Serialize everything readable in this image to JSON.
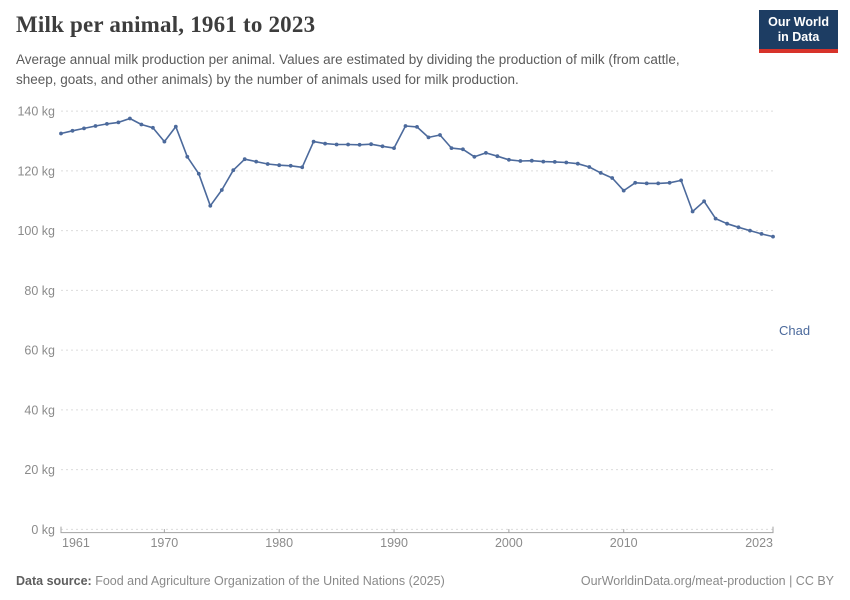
{
  "header": {
    "title": "Milk per animal, 1961 to 2023",
    "subtitle": "Average annual milk production per animal. Values are estimated by dividing the production of milk (from cattle, sheep, goats, and other animals) by the number of animals used for milk production.",
    "logo": {
      "line1": "Our World",
      "line2": "in Data"
    }
  },
  "footer": {
    "source_label": "Data source:",
    "source_text": "Food and Agriculture Organization of the United Nations (2025)",
    "link_text": "OurWorldinData.org/meat-production | CC BY"
  },
  "colors": {
    "line": "#4C6A9C",
    "axis_text": "#8b8b8b",
    "grid": "#dcdcdc",
    "axis_line": "#a3a3a3",
    "logo_bg": "#1d3d63",
    "logo_stripe": "#d7332a"
  },
  "chart_data": {
    "type": "line",
    "title": "Milk per animal, 1961 to 2023",
    "ylabel": "",
    "xlabel": "",
    "unit": "kg",
    "entity": "Chad",
    "grid": "dashed-horizontal",
    "legend": "series-end-label",
    "ylim": [
      0,
      140
    ],
    "yticks": [
      0,
      20,
      40,
      60,
      80,
      100,
      120,
      140
    ],
    "ytick_suffix": " kg",
    "xticks": [
      1961,
      1970,
      1980,
      1990,
      2000,
      2010,
      2023
    ],
    "x": [
      1961,
      1962,
      1963,
      1964,
      1965,
      1966,
      1967,
      1968,
      1969,
      1970,
      1971,
      1972,
      1973,
      1974,
      1975,
      1976,
      1977,
      1978,
      1979,
      1980,
      1981,
      1982,
      1983,
      1984,
      1985,
      1986,
      1987,
      1988,
      1989,
      1990,
      1991,
      1992,
      1993,
      1994,
      1995,
      1996,
      1997,
      1998,
      1999,
      2000,
      2001,
      2002,
      2003,
      2004,
      2005,
      2006,
      2007,
      2008,
      2009,
      2010,
      2011,
      2012,
      2013,
      2014,
      2015,
      2016,
      2017,
      2018,
      2019,
      2020,
      2021,
      2022,
      2023
    ],
    "series": [
      {
        "name": "Chad",
        "color": "#4C6A9C",
        "values": [
          132.5,
          133.4,
          134.2,
          135.0,
          135.7,
          136.2,
          137.5,
          135.5,
          134.4,
          129.8,
          134.8,
          124.7,
          119.0,
          108.3,
          113.6,
          120.2,
          123.9,
          123.1,
          122.3,
          121.9,
          121.7,
          121.2,
          129.8,
          129.1,
          128.8,
          128.8,
          128.7,
          128.9,
          128.2,
          127.6,
          135.0,
          134.7,
          131.2,
          132.0,
          127.6,
          127.2,
          124.7,
          126.0,
          124.9,
          123.7,
          123.3,
          123.4,
          123.1,
          123.0,
          122.8,
          122.4,
          121.3,
          119.3,
          117.6,
          113.4,
          116.0,
          115.8,
          115.8,
          116.0,
          116.8,
          106.4,
          109.8,
          104.0,
          102.3,
          101.1,
          100.0,
          98.9,
          98.0
        ]
      }
    ]
  }
}
